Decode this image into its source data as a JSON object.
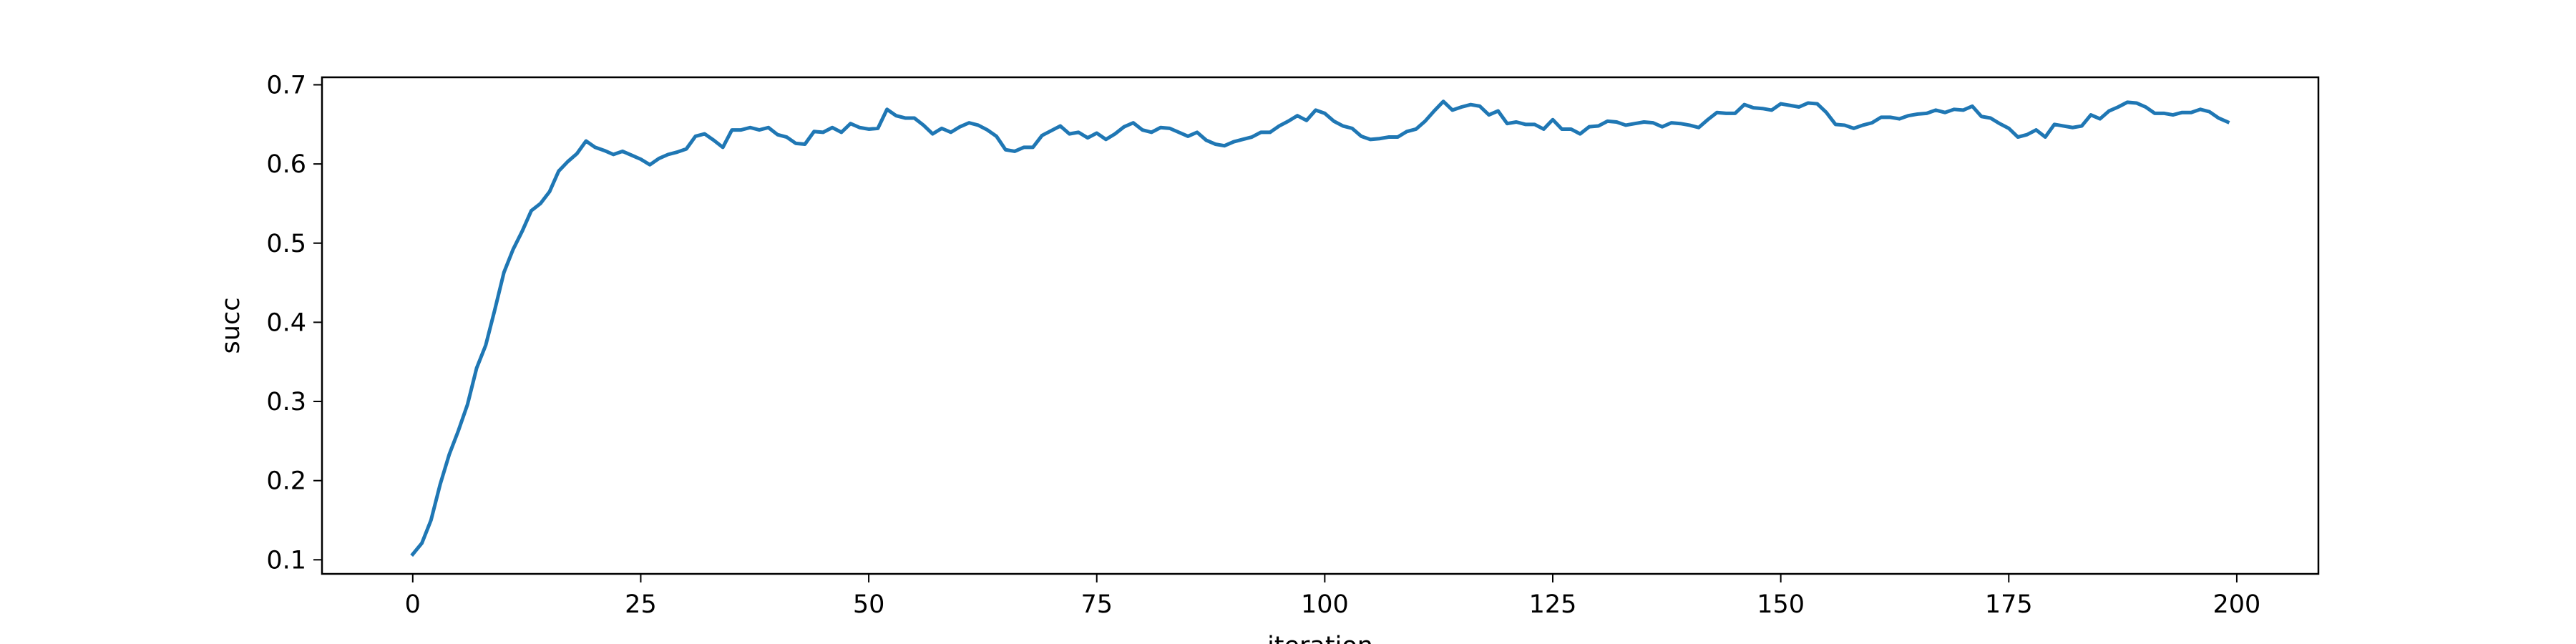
{
  "chart_data": {
    "type": "line",
    "title": "",
    "xlabel": "iteration",
    "ylabel": "succ",
    "xlim": [
      -9.95,
      208.95
    ],
    "ylim": [
      0.0822,
      0.7095
    ],
    "grid": false,
    "legend": "none",
    "x_ticks": [
      0,
      25,
      50,
      75,
      100,
      125,
      150,
      175,
      200
    ],
    "x_tick_labels": [
      "0",
      "25",
      "50",
      "75",
      "100",
      "125",
      "150",
      "175",
      "200"
    ],
    "y_ticks": [
      0.1,
      0.2,
      0.3,
      0.4,
      0.5,
      0.6,
      0.7
    ],
    "y_tick_labels": [
      "0.1",
      "0.2",
      "0.3",
      "0.4",
      "0.5",
      "0.6",
      "0.7"
    ],
    "colors": {
      "line": "#1f77b4",
      "axes": "#000000",
      "background": "#ffffff"
    },
    "series": [
      {
        "x": [
          0,
          1,
          2,
          3,
          4,
          5,
          6,
          7,
          8,
          9,
          10,
          11,
          12,
          13,
          14,
          15,
          16,
          17,
          18,
          19,
          20,
          21,
          22,
          23,
          24,
          25,
          26,
          27,
          28,
          29,
          30,
          31,
          32,
          33,
          34,
          35,
          36,
          37,
          38,
          39,
          40,
          41,
          42,
          43,
          44,
          45,
          46,
          47,
          48,
          49,
          50,
          51,
          52,
          53,
          54,
          55,
          56,
          57,
          58,
          59,
          60,
          61,
          62,
          63,
          64,
          65,
          66,
          67,
          68,
          69,
          70,
          71,
          72,
          73,
          74,
          75,
          76,
          77,
          78,
          79,
          80,
          81,
          82,
          83,
          84,
          85,
          86,
          87,
          88,
          89,
          90,
          91,
          92,
          93,
          94,
          95,
          96,
          97,
          98,
          99,
          100,
          101,
          102,
          103,
          104,
          105,
          106,
          107,
          108,
          109,
          110,
          111,
          112,
          113,
          114,
          115,
          116,
          117,
          118,
          119,
          120,
          121,
          122,
          123,
          124,
          125,
          126,
          127,
          128,
          129,
          130,
          131,
          132,
          133,
          134,
          135,
          136,
          137,
          138,
          139,
          140,
          141,
          142,
          143,
          144,
          145,
          146,
          147,
          148,
          149,
          150,
          151,
          152,
          153,
          154,
          155,
          156,
          157,
          158,
          159,
          160,
          161,
          162,
          163,
          164,
          165,
          166,
          167,
          168,
          169,
          170,
          171,
          172,
          173,
          174,
          175,
          176,
          177,
          178,
          179,
          180,
          181,
          182,
          183,
          184,
          185,
          186,
          187,
          188,
          189,
          190,
          191,
          192,
          193,
          194,
          195,
          196,
          197,
          198,
          199
        ],
        "values": [
          0.107,
          0.121,
          0.15,
          0.195,
          0.233,
          0.263,
          0.296,
          0.342,
          0.371,
          0.416,
          0.463,
          0.492,
          0.515,
          0.541,
          0.55,
          0.565,
          0.591,
          0.603,
          0.613,
          0.629,
          0.621,
          0.617,
          0.612,
          0.616,
          0.611,
          0.606,
          0.599,
          0.607,
          0.612,
          0.615,
          0.619,
          0.635,
          0.638,
          0.63,
          0.621,
          0.643,
          0.643,
          0.646,
          0.643,
          0.646,
          0.637,
          0.634,
          0.626,
          0.625,
          0.641,
          0.64,
          0.646,
          0.64,
          0.651,
          0.646,
          0.644,
          0.645,
          0.669,
          0.661,
          0.658,
          0.658,
          0.649,
          0.638,
          0.645,
          0.64,
          0.647,
          0.652,
          0.649,
          0.643,
          0.635,
          0.618,
          0.616,
          0.621,
          0.621,
          0.636,
          0.642,
          0.648,
          0.638,
          0.64,
          0.633,
          0.639,
          0.631,
          0.638,
          0.647,
          0.652,
          0.643,
          0.64,
          0.646,
          0.645,
          0.64,
          0.635,
          0.64,
          0.63,
          0.625,
          0.623,
          0.628,
          0.631,
          0.634,
          0.64,
          0.64,
          0.648,
          0.654,
          0.661,
          0.655,
          0.668,
          0.664,
          0.654,
          0.648,
          0.645,
          0.635,
          0.631,
          0.632,
          0.634,
          0.634,
          0.641,
          0.644,
          0.654,
          0.667,
          0.679,
          0.668,
          0.672,
          0.675,
          0.673,
          0.662,
          0.667,
          0.651,
          0.653,
          0.65,
          0.65,
          0.644,
          0.656,
          0.644,
          0.644,
          0.638,
          0.647,
          0.648,
          0.654,
          0.653,
          0.649,
          0.651,
          0.653,
          0.652,
          0.647,
          0.652,
          0.651,
          0.649,
          0.646,
          0.656,
          0.665,
          0.664,
          0.664,
          0.675,
          0.671,
          0.67,
          0.668,
          0.676,
          0.674,
          0.672,
          0.677,
          0.676,
          0.665,
          0.65,
          0.649,
          0.645,
          0.649,
          0.652,
          0.659,
          0.659,
          0.657,
          0.661,
          0.663,
          0.664,
          0.668,
          0.665,
          0.669,
          0.668,
          0.673,
          0.66,
          0.658,
          0.651,
          0.645,
          0.634,
          0.637,
          0.643,
          0.634,
          0.65,
          0.648,
          0.646,
          0.648,
          0.662,
          0.657,
          0.667,
          0.672,
          0.678,
          0.677,
          0.672,
          0.664,
          0.664,
          0.662,
          0.665,
          0.665,
          0.669,
          0.666,
          0.658,
          0.653
        ]
      }
    ]
  }
}
